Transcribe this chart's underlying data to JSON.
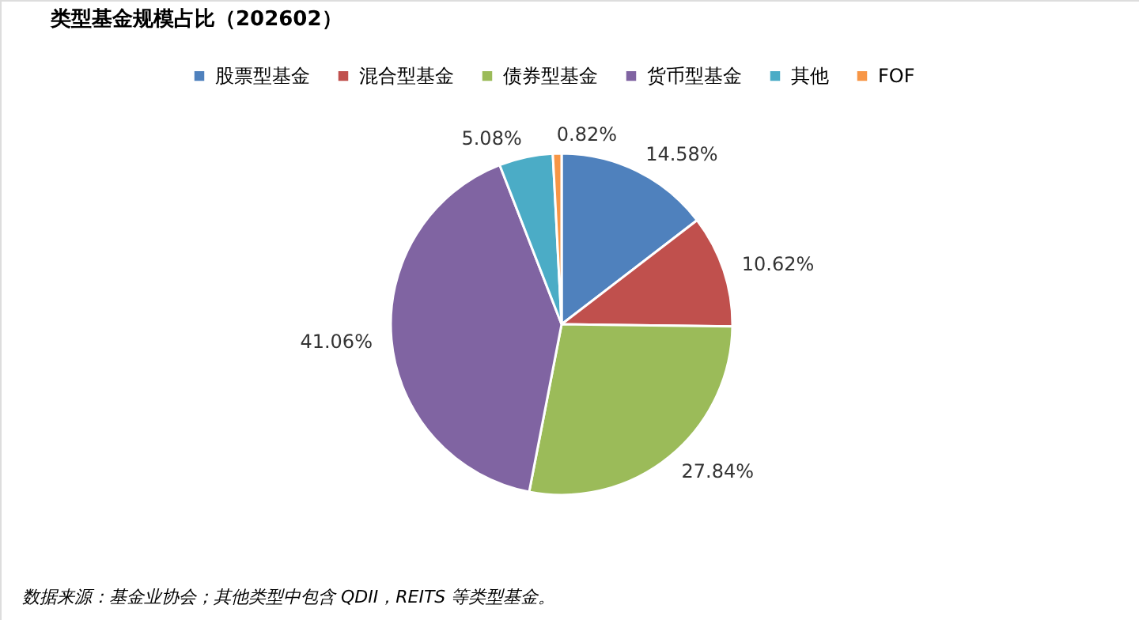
{
  "chart_data": {
    "type": "pie",
    "title": "类型基金规模占比（202602）",
    "categories": [
      "股票型基金",
      "混合型基金",
      "债券型基金",
      "货币型基金",
      "其他",
      "FOF"
    ],
    "values": [
      14.58,
      10.62,
      27.84,
      41.06,
      5.08,
      0.82
    ],
    "colors": [
      "#4f81bd",
      "#c0504d",
      "#9bbb59",
      "#8064a2",
      "#4bacc6",
      "#f79646"
    ],
    "value_labels": [
      "14.58%",
      "10.62%",
      "27.84%",
      "41.06%",
      "5.08%",
      "0.82%"
    ],
    "legend": "top",
    "annotations": [
      "数据来源：基金业协会；其他类型中包含 QDII，REITS 等类型基金。"
    ]
  }
}
